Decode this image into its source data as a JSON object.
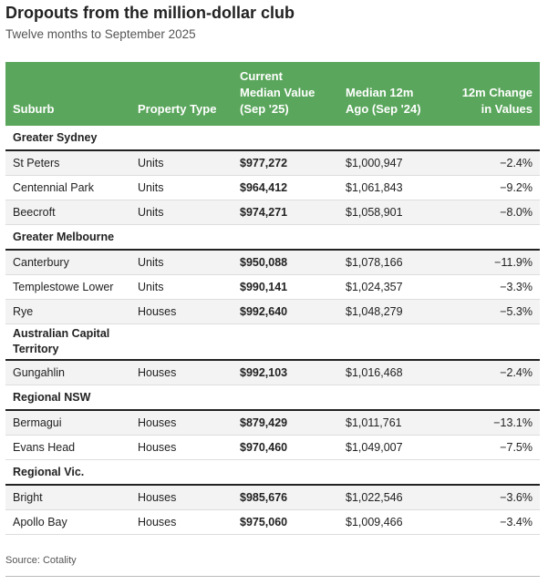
{
  "header": {
    "title": "Dropouts from the million-dollar club",
    "subtitle": "Twelve months to September 2025"
  },
  "table": {
    "columns": [
      "Suburb",
      "Property Type",
      "Current\nMedian Value\n(Sep '25)",
      "Median 12m\nAgo (Sep '24)",
      "12m Change\nin Values"
    ],
    "groups": [
      {
        "name": "Greater Sydney",
        "rows": [
          [
            "St Peters",
            "Units",
            "$977,272",
            "$1,000,947",
            "−2.4%"
          ],
          [
            "Centennial Park",
            "Units",
            "$964,412",
            "$1,061,843",
            "−9.2%"
          ],
          [
            "Beecroft",
            "Units",
            "$974,271",
            "$1,058,901",
            "−8.0%"
          ]
        ]
      },
      {
        "name": "Greater Melbourne",
        "rows": [
          [
            "Canterbury",
            "Units",
            "$950,088",
            "$1,078,166",
            "−11.9%"
          ],
          [
            "Templestowe Lower",
            "Units",
            "$990,141",
            "$1,024,357",
            "−3.3%"
          ],
          [
            "Rye",
            "Houses",
            "$992,640",
            "$1,048,279",
            "−5.3%"
          ]
        ]
      },
      {
        "name": "Australian Capital Territory",
        "rows": [
          [
            "Gungahlin",
            "Houses",
            "$992,103",
            "$1,016,468",
            "−2.4%"
          ]
        ]
      },
      {
        "name": "Regional NSW",
        "rows": [
          [
            "Bermagui",
            "Houses",
            "$879,429",
            "$1,011,761",
            "−13.1%"
          ],
          [
            "Evans Head",
            "Houses",
            "$970,460",
            "$1,049,007",
            "−7.5%"
          ]
        ]
      },
      {
        "name": "Regional Vic.",
        "rows": [
          [
            "Bright",
            "Houses",
            "$985,676",
            "$1,022,546",
            "−3.6%"
          ],
          [
            "Apollo Bay",
            "Houses",
            "$975,060",
            "$1,009,466",
            "−3.4%"
          ]
        ]
      }
    ]
  },
  "footer": {
    "source": "Source: Cotality"
  }
}
